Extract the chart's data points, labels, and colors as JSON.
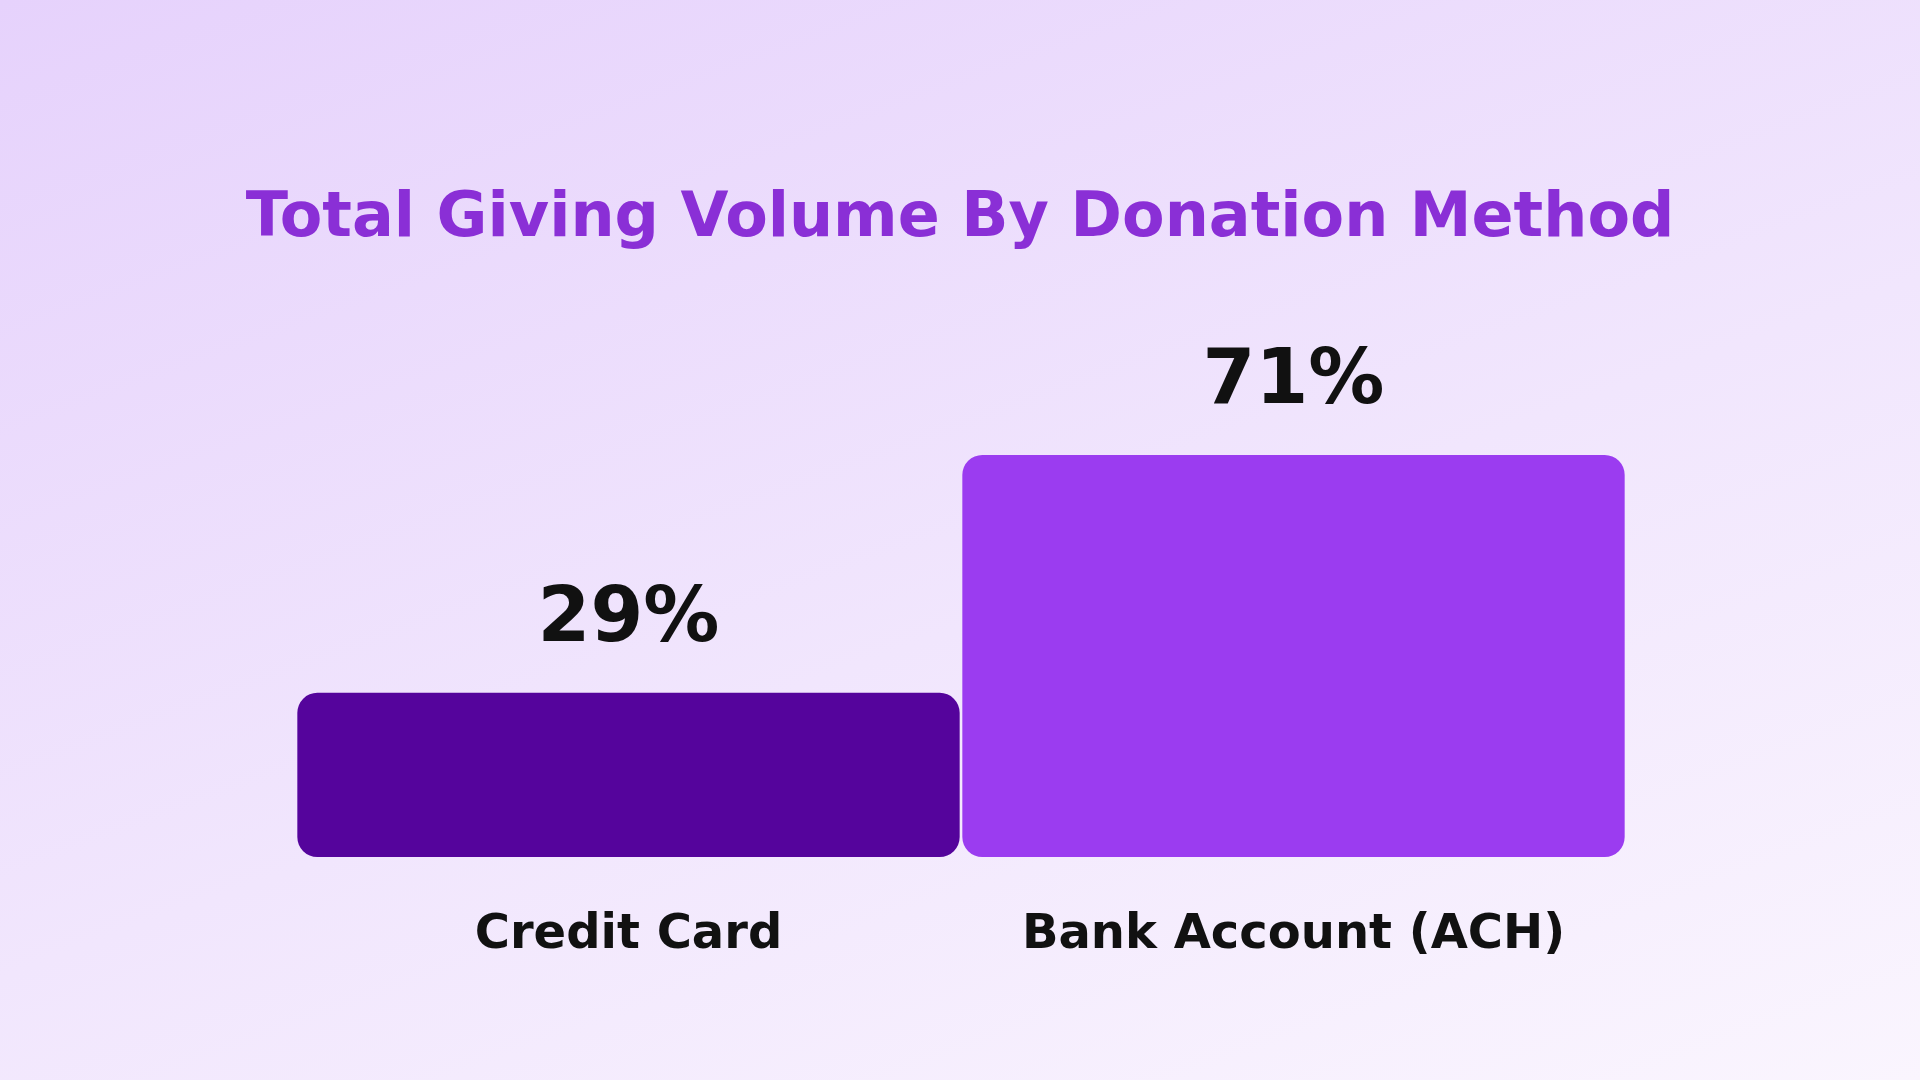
{
  "chart_data": {
    "type": "bar",
    "title": "Total Giving Volume By Donation Method",
    "categories": [
      "Credit Card",
      "Bank Account (ACH)"
    ],
    "values": [
      29,
      71
    ],
    "colors": [
      "#55049c",
      "#9b3cf0"
    ],
    "value_labels": [
      "29%",
      "71%"
    ]
  }
}
